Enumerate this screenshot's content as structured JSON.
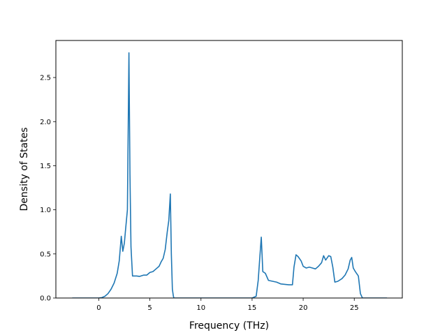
{
  "chart_data": {
    "type": "line",
    "title": "",
    "xlabel": "Frequency (THz)",
    "ylabel": "Density of States",
    "xlim": [
      -4.2,
      29.7
    ],
    "ylim": [
      0.0,
      2.92
    ],
    "xticks": [
      0,
      5,
      10,
      15,
      20,
      25
    ],
    "yticks": [
      0.0,
      0.5,
      1.0,
      1.5,
      2.0,
      2.5
    ],
    "xtick_labels": [
      "0",
      "5",
      "10",
      "15",
      "20",
      "25"
    ],
    "ytick_labels": [
      "0.0",
      "0.5",
      "1.0",
      "1.5",
      "2.0",
      "2.5"
    ],
    "grid": false,
    "legend": "none",
    "series": [
      {
        "color": "#1f77b4",
        "x": [
          -2.6,
          -1.5,
          -0.5,
          0.0,
          0.3,
          0.6,
          0.9,
          1.2,
          1.5,
          1.8,
          2.0,
          2.2,
          2.35,
          2.5,
          2.6,
          2.8,
          2.95,
          3.05,
          3.15,
          3.3,
          3.5,
          3.7,
          4.0,
          4.4,
          4.7,
          5.0,
          5.3,
          5.6,
          5.9,
          6.1,
          6.3,
          6.5,
          6.7,
          6.85,
          7.0,
          7.1,
          7.2,
          7.3,
          7.35,
          7.45,
          7.6,
          8.0,
          10.0,
          12.0,
          14.0,
          15.0,
          15.4,
          15.6,
          15.75,
          15.9,
          16.05,
          16.3,
          16.6,
          17.0,
          17.4,
          17.8,
          18.2,
          18.6,
          18.95,
          19.1,
          19.3,
          19.5,
          19.8,
          20.0,
          20.3,
          20.6,
          20.9,
          21.2,
          21.5,
          21.8,
          22.0,
          22.2,
          22.5,
          22.7,
          22.9,
          23.1,
          23.4,
          23.8,
          24.1,
          24.4,
          24.6,
          24.75,
          24.9,
          25.1,
          25.4,
          25.6,
          25.8,
          26.5,
          27.5,
          28.2
        ],
        "y": [
          0.0,
          0.0,
          0.0,
          0.0,
          0.005,
          0.02,
          0.05,
          0.1,
          0.17,
          0.28,
          0.42,
          0.7,
          0.53,
          0.62,
          0.75,
          1.0,
          2.78,
          1.4,
          0.58,
          0.25,
          0.25,
          0.25,
          0.245,
          0.26,
          0.26,
          0.29,
          0.3,
          0.33,
          0.36,
          0.41,
          0.45,
          0.55,
          0.75,
          0.88,
          1.18,
          0.5,
          0.1,
          0.02,
          0.0,
          0.0,
          0.0,
          0.0,
          0.0,
          0.0,
          0.0,
          0.0,
          0.02,
          0.2,
          0.45,
          0.69,
          0.3,
          0.28,
          0.2,
          0.19,
          0.18,
          0.16,
          0.155,
          0.15,
          0.15,
          0.35,
          0.49,
          0.47,
          0.42,
          0.36,
          0.34,
          0.35,
          0.34,
          0.33,
          0.36,
          0.4,
          0.48,
          0.43,
          0.48,
          0.47,
          0.35,
          0.18,
          0.19,
          0.22,
          0.26,
          0.33,
          0.43,
          0.46,
          0.34,
          0.3,
          0.25,
          0.05,
          0.0,
          0.0,
          0.0,
          0.0
        ]
      }
    ]
  }
}
